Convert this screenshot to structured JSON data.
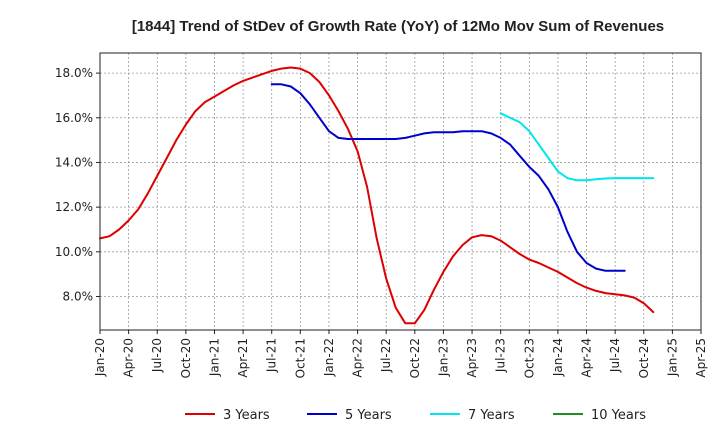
{
  "chart_data": {
    "type": "line",
    "title": "[1844]  Trend of StDev of Growth Rate (YoY) of 12Mo Mov Sum of Revenues",
    "xlabel": "",
    "ylabel": "",
    "x_ticks": [
      "Jan-20",
      "Apr-20",
      "Jul-20",
      "Oct-20",
      "Jan-21",
      "Apr-21",
      "Jul-21",
      "Oct-21",
      "Jan-22",
      "Apr-22",
      "Jul-22",
      "Oct-22",
      "Jan-23",
      "Apr-23",
      "Jul-23",
      "Oct-23",
      "Jan-24",
      "Apr-24",
      "Jul-24",
      "Oct-24",
      "Jan-25",
      "Apr-25"
    ],
    "x_range": [
      0,
      63
    ],
    "y_ticks": [
      8,
      10,
      12,
      14,
      16,
      18
    ],
    "y_tick_labels": [
      "8.0%",
      "10.0%",
      "12.0%",
      "14.0%",
      "16.0%",
      "18.0%"
    ],
    "ylim": [
      6.5,
      18.9
    ],
    "grid": true,
    "legend_position": "bottom",
    "series": [
      {
        "name": "3 Years",
        "color": "#dd0000",
        "start_index": 0,
        "values": [
          10.6,
          10.7,
          11.0,
          11.4,
          11.9,
          12.6,
          13.4,
          14.2,
          15.0,
          15.7,
          16.3,
          16.7,
          16.95,
          17.2,
          17.45,
          17.65,
          17.8,
          17.95,
          18.1,
          18.2,
          18.25,
          18.2,
          18.0,
          17.6,
          17.0,
          16.3,
          15.5,
          14.5,
          12.9,
          10.6,
          8.8,
          7.5,
          6.8,
          6.8,
          7.4,
          8.3,
          9.1,
          9.8,
          10.3,
          10.65,
          10.75,
          10.7,
          10.5,
          10.2,
          9.9,
          9.65,
          9.5,
          9.3,
          9.1,
          8.85,
          8.6,
          8.4,
          8.25,
          8.15,
          8.1,
          8.05,
          7.95,
          7.7,
          7.3
        ]
      },
      {
        "name": "5 Years",
        "color": "#0000cc",
        "start_index": 18,
        "values": [
          17.5,
          17.5,
          17.4,
          17.1,
          16.6,
          16.0,
          15.4,
          15.1,
          15.05,
          15.05,
          15.05,
          15.05,
          15.05,
          15.05,
          15.1,
          15.2,
          15.3,
          15.35,
          15.35,
          15.35,
          15.4,
          15.4,
          15.4,
          15.3,
          15.1,
          14.8,
          14.3,
          13.8,
          13.4,
          12.8,
          12.0,
          10.9,
          10.0,
          9.5,
          9.25,
          9.15,
          9.15,
          9.15
        ]
      },
      {
        "name": "7 Years",
        "color": "#00e5ee",
        "start_index": 42,
        "values": [
          16.2,
          16.0,
          15.8,
          15.4,
          14.8,
          14.2,
          13.6,
          13.3,
          13.2,
          13.2,
          13.25,
          13.28,
          13.3,
          13.3,
          13.3,
          13.3,
          13.3
        ]
      },
      {
        "name": "10 Years",
        "color": "#228b22",
        "start_index": 0,
        "values": []
      }
    ]
  }
}
